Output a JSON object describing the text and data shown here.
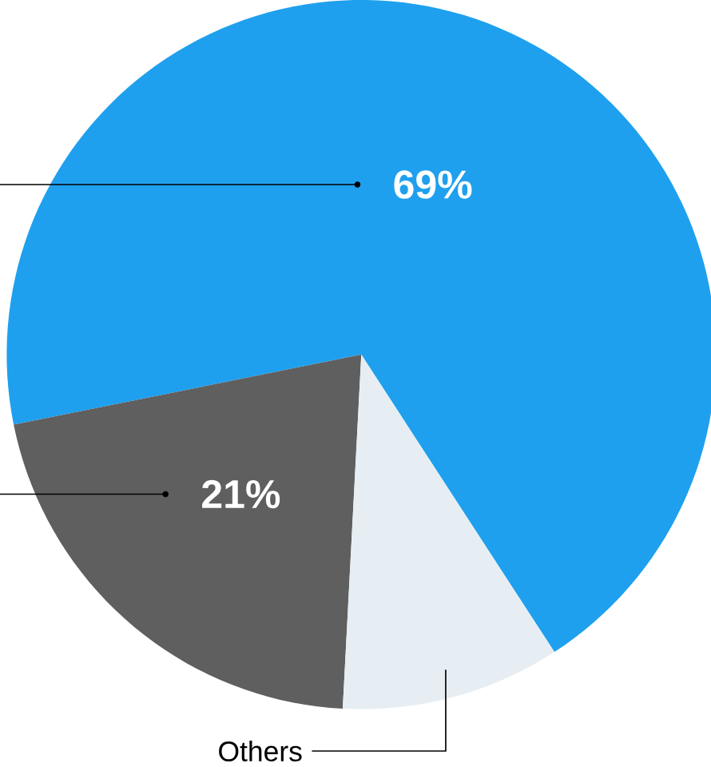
{
  "chart_data": {
    "type": "pie",
    "categories": [
      null,
      null,
      "Others"
    ],
    "values": [
      69,
      21,
      10
    ],
    "colors": [
      "#1fa0ee",
      "#5f5f5f",
      "#e6eef3"
    ],
    "value_labels": [
      "69%",
      "21%",
      null
    ]
  }
}
